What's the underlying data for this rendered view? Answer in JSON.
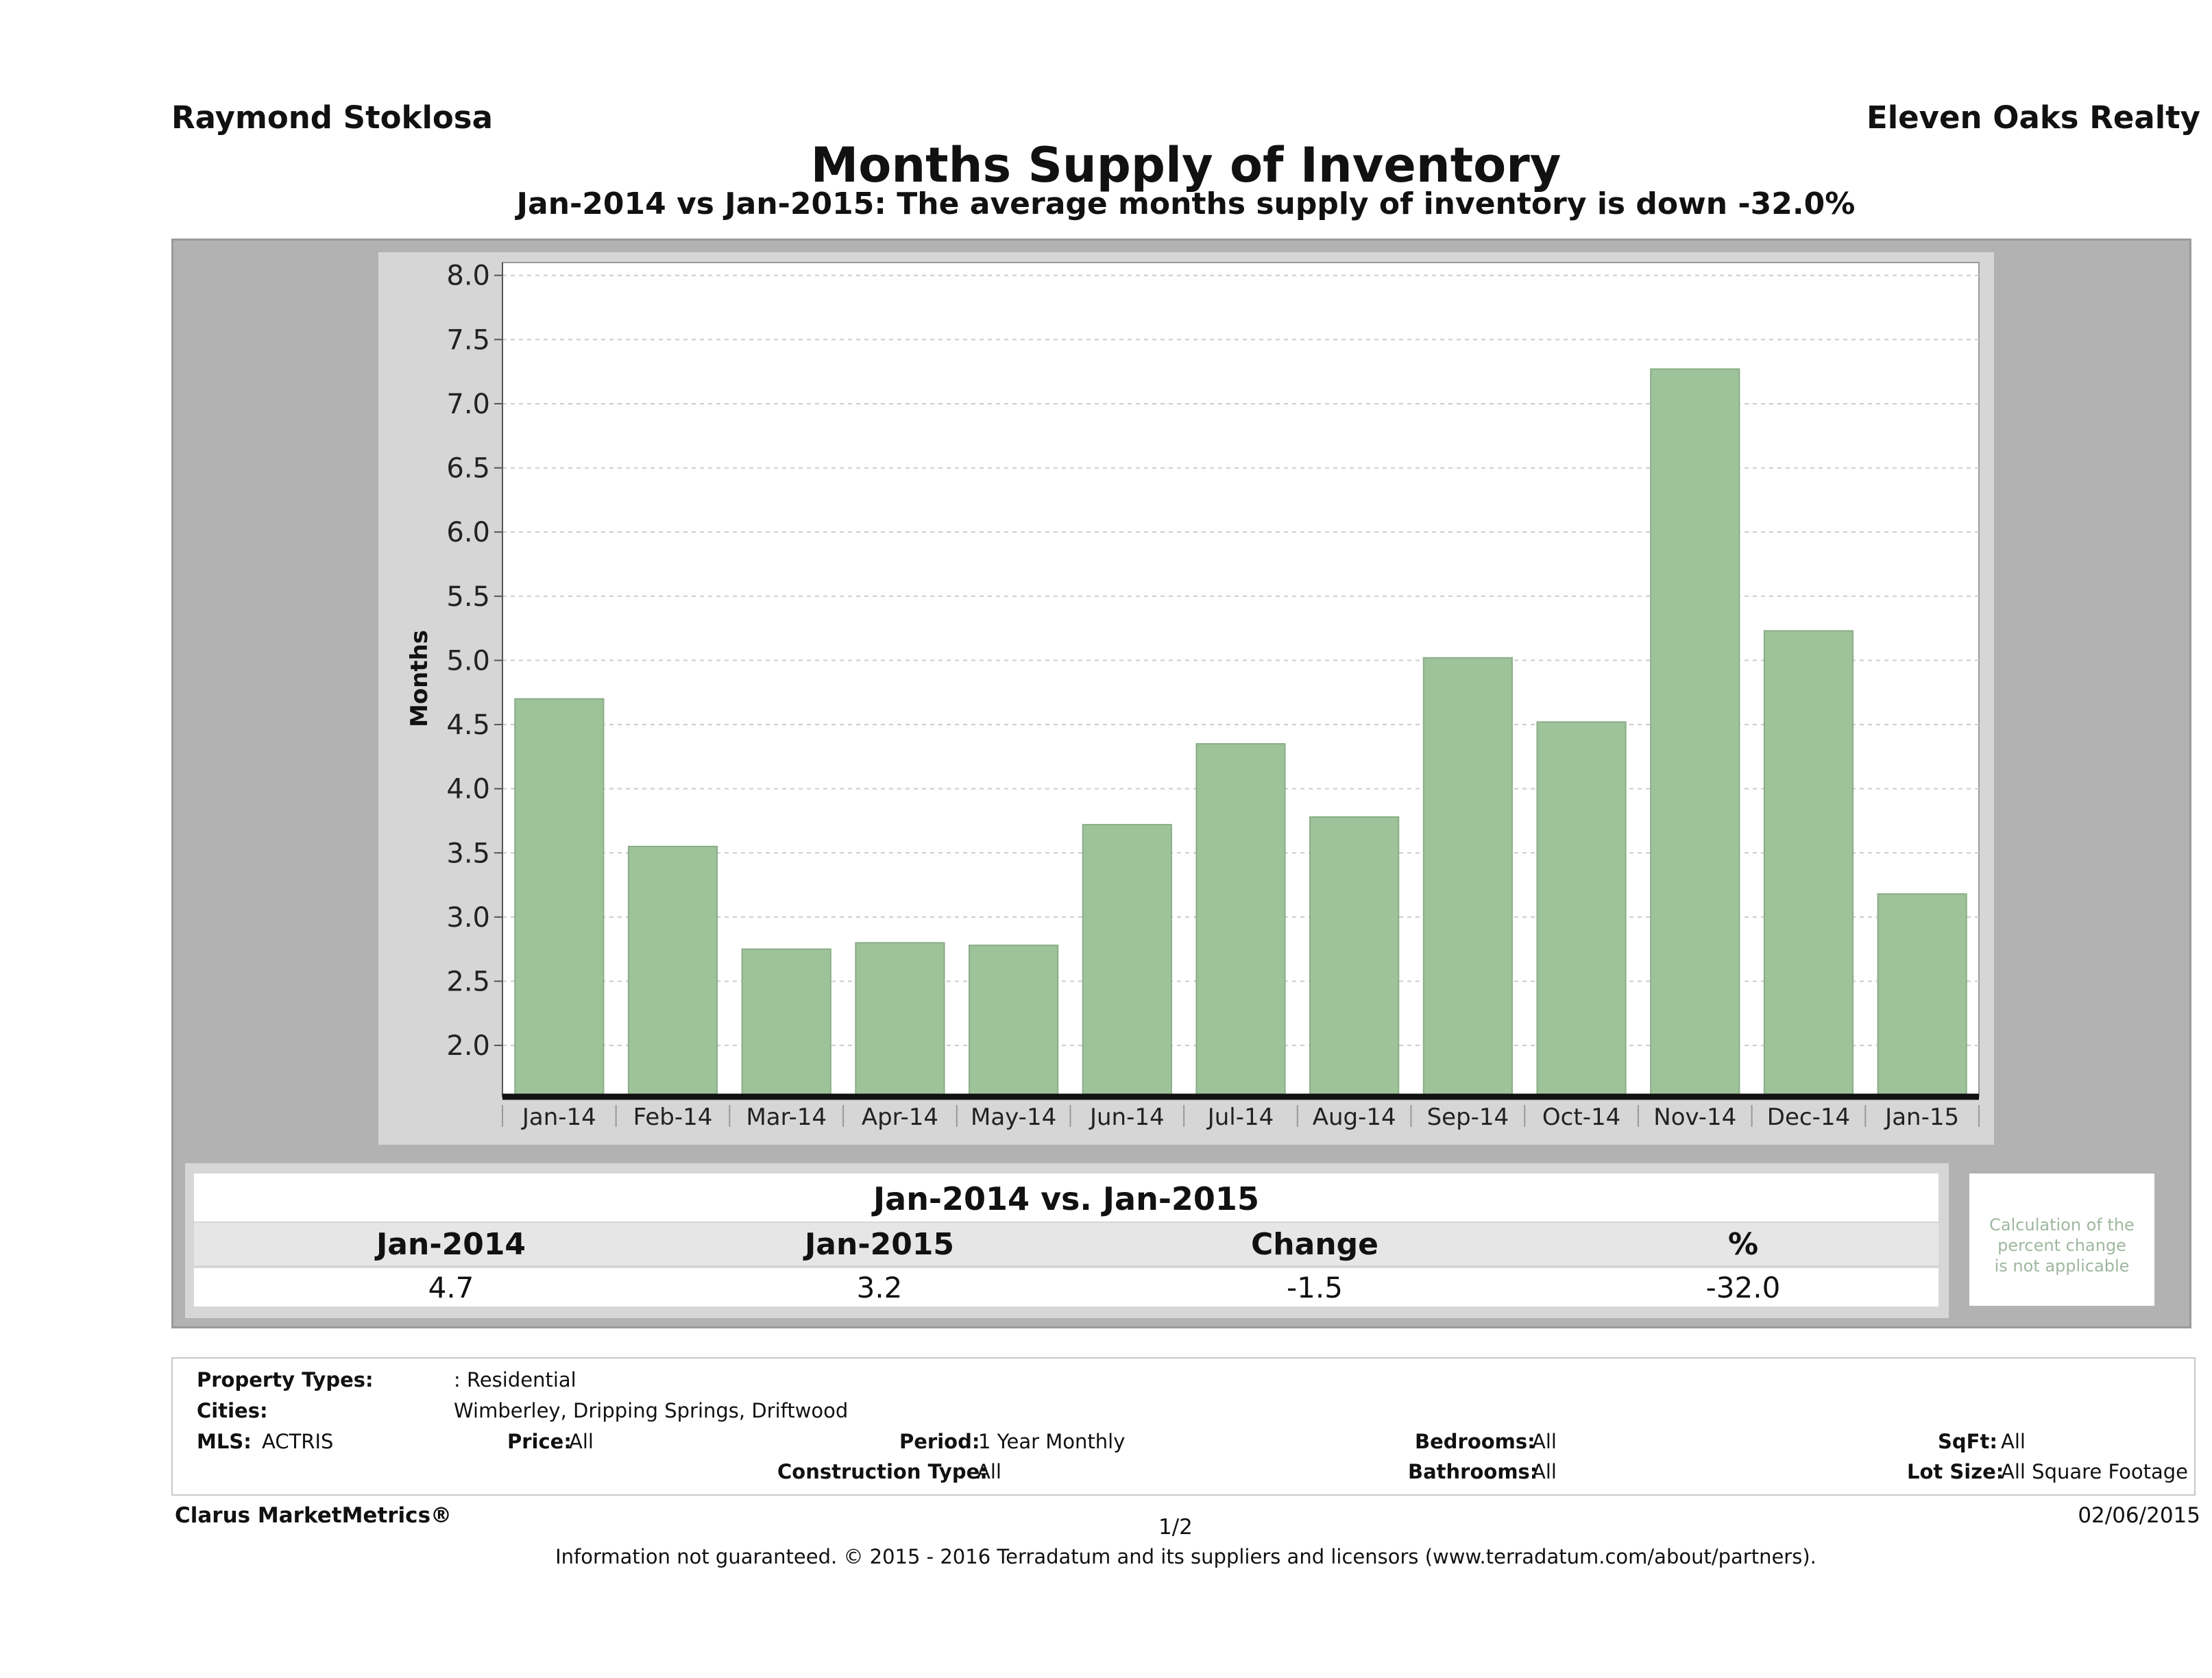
{
  "header": {
    "agent": "Raymond Stoklosa",
    "company": "Eleven Oaks Realty",
    "title": "Months Supply of Inventory",
    "subtitle": "Jan-2014 vs Jan-2015: The average months supply of inventory is down -32.0%"
  },
  "colors": {
    "bar": "#9ec29a",
    "bar_border": "#8aae86",
    "frame": "#b2b2b2",
    "plot_bg": "#d6d6d6",
    "axis": "#111111",
    "grid": "#cccccc",
    "note": "#9fb79f"
  },
  "chart_data": {
    "type": "bar",
    "title": "Months Supply of Inventory",
    "xlabel": "",
    "ylabel": "Months",
    "categories": [
      "Jan-14",
      "Feb-14",
      "Mar-14",
      "Apr-14",
      "May-14",
      "Jun-14",
      "Jul-14",
      "Aug-14",
      "Sep-14",
      "Oct-14",
      "Nov-14",
      "Dec-14",
      "Jan-15"
    ],
    "values": [
      4.7,
      3.55,
      2.75,
      2.8,
      2.78,
      3.72,
      4.35,
      3.78,
      5.02,
      4.52,
      7.27,
      5.23,
      3.18
    ],
    "ylim": [
      1.6,
      8.1
    ],
    "yticks": [
      "2.0",
      "2.5",
      "3.0",
      "3.5",
      "4.0",
      "4.5",
      "5.0",
      "5.5",
      "6.0",
      "6.5",
      "7.0",
      "7.5",
      "8.0"
    ],
    "grid": true,
    "legend": "none"
  },
  "summary": {
    "title": "Jan-2014 vs. Jan-2015",
    "headers": [
      "Jan-2014",
      "Jan-2015",
      "Change",
      "%"
    ],
    "values": [
      "4.7",
      "3.2",
      "-1.5",
      "-32.0"
    ],
    "note": [
      "Calculation of the",
      "percent change",
      "is not applicable"
    ]
  },
  "params": {
    "property_types_label": "Property Types:",
    "property_types_value": ": Residential",
    "cities_label": "Cities:",
    "cities_value": "Wimberley, Dripping Springs, Driftwood",
    "mls_label": "MLS:",
    "mls_value": "ACTRIS",
    "price_label": "Price:",
    "price_value": "All",
    "period_label": "Period:",
    "period_value": "1 Year Monthly",
    "construction_label": "Construction Type:",
    "construction_value": "All",
    "bedrooms_label": "Bedrooms:",
    "bedrooms_value": "All",
    "bathrooms_label": "Bathrooms:",
    "bathrooms_value": "All",
    "sqft_label": "SqFt:",
    "sqft_value": "All",
    "lotsize_label": "Lot Size:",
    "lotsize_value": "All Square Footage"
  },
  "footer": {
    "brand": "Clarus MarketMetrics®",
    "page": "1/2",
    "date": "02/06/2015",
    "disclaimer": "Information not guaranteed. © 2015 - 2016 Terradatum and its suppliers and licensors (www.terradatum.com/about/partners)."
  }
}
